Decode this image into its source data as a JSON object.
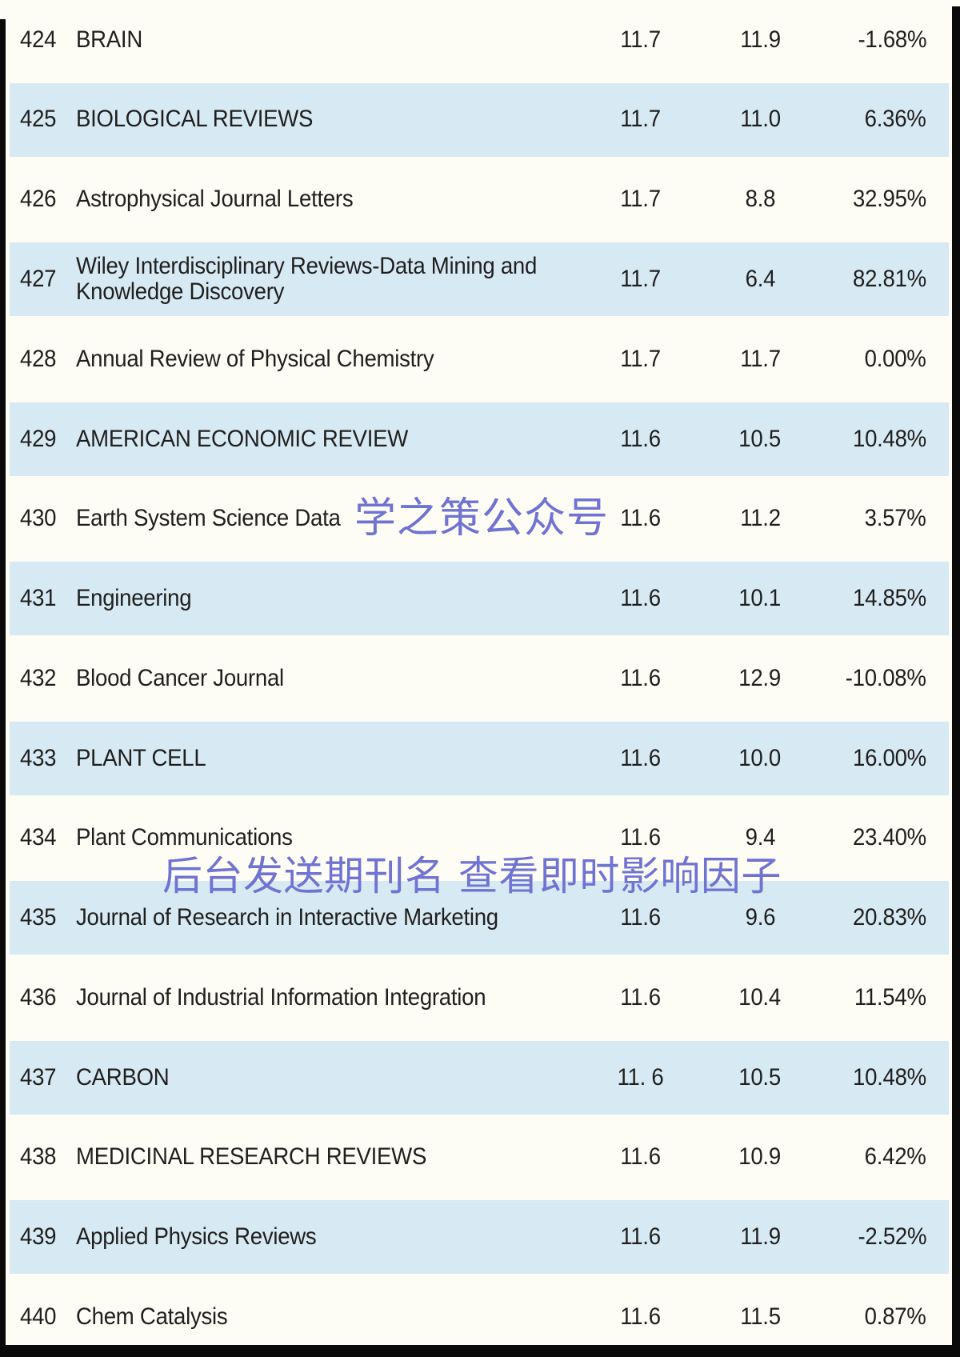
{
  "colors": {
    "bg-white": "#fdfcf5",
    "stripe-blue": "#d7e9f2",
    "edge-black": "#0a0a0a",
    "text-dark": "#1f1f1f",
    "watermark-blue": "#6f73d2"
  },
  "watermarks": {
    "wm1": "学之策公众号",
    "wm2": "后台发送期刊名 查看即时影响因子"
  },
  "table": {
    "description": "Journal impact factor ranking list, ranks 424-440",
    "rows": [
      {
        "rank": "424",
        "name": "BRAIN",
        "v1": "11.7",
        "v2": "11.9",
        "change": "-1.68%"
      },
      {
        "rank": "425",
        "name": "BIOLOGICAL REVIEWS",
        "v1": "11.7",
        "v2": "11.0",
        "change": "6.36%"
      },
      {
        "rank": "426",
        "name": "Astrophysical Journal Letters",
        "v1": "11.7",
        "v2": "8.8",
        "change": "32.95%"
      },
      {
        "rank": "427",
        "name": "Wiley Interdisciplinary Reviews-Data Mining and\nKnowledge Discovery",
        "v1": "11.7",
        "v2": "6.4",
        "change": "82.81%"
      },
      {
        "rank": "428",
        "name": "Annual Review of Physical Chemistry",
        "v1": "11.7",
        "v2": "11.7",
        "change": "0.00%"
      },
      {
        "rank": "429",
        "name": "AMERICAN ECONOMIC REVIEW",
        "v1": "11.6",
        "v2": "10.5",
        "change": "10.48%"
      },
      {
        "rank": "430",
        "name": "Earth System Science Data",
        "v1": "11.6",
        "v2": "11.2",
        "change": "3.57%"
      },
      {
        "rank": "431",
        "name": "Engineering",
        "v1": "11.6",
        "v2": "10.1",
        "change": "14.85%"
      },
      {
        "rank": "432",
        "name": "Blood Cancer Journal",
        "v1": "11.6",
        "v2": "12.9",
        "change": "-10.08%"
      },
      {
        "rank": "433",
        "name": "PLANT CELL",
        "v1": "11.6",
        "v2": "10.0",
        "change": "16.00%"
      },
      {
        "rank": "434",
        "name": "Plant Communications",
        "v1": "11.6",
        "v2": "9.4",
        "change": "23.40%"
      },
      {
        "rank": "435",
        "name": "Journal of Research in Interactive Marketing",
        "v1": "11.6",
        "v2": "9.6",
        "change": "20.83%"
      },
      {
        "rank": "436",
        "name": "Journal of Industrial Information Integration",
        "v1": "11.6",
        "v2": "10.4",
        "change": "11.54%"
      },
      {
        "rank": "437",
        "name": "CARBON",
        "v1": "11. 6",
        "v2": "10.5",
        "change": "10.48%"
      },
      {
        "rank": "438",
        "name": "MEDICINAL RESEARCH REVIEWS",
        "v1": "11.6",
        "v2": "10.9",
        "change": "6.42%"
      },
      {
        "rank": "439",
        "name": "Applied Physics Reviews",
        "v1": "11.6",
        "v2": "11.9",
        "change": "-2.52%"
      },
      {
        "rank": "440",
        "name": "Chem Catalysis",
        "v1": "11.6",
        "v2": "11.5",
        "change": "0.87%"
      }
    ]
  }
}
